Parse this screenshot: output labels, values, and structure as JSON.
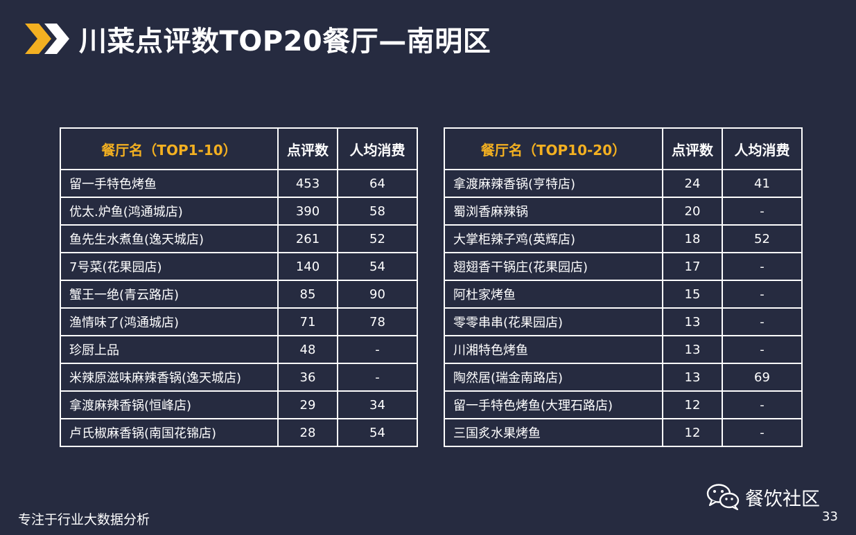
{
  "title": "川菜点评数TOP20餐厅—南明区",
  "accent_color": "#f3b021",
  "background_color": "#262b40",
  "chevron_icon": "double-chevron-right-icon",
  "table_left": {
    "headers": [
      "餐厅名（TOP1-10）",
      "点评数",
      "人均消费"
    ],
    "rows": [
      [
        "留一手特色烤鱼",
        "453",
        "64"
      ],
      [
        "优太.炉鱼(鸿通城店)",
        "390",
        "58"
      ],
      [
        "鱼先生水煮鱼(逸天城店)",
        "261",
        "52"
      ],
      [
        "7号菜(花果园店)",
        "140",
        "54"
      ],
      [
        "蟹王一绝(青云路店)",
        "85",
        "90"
      ],
      [
        "渔情味了(鸿通城店)",
        "71",
        "78"
      ],
      [
        "珍厨上品",
        "48",
        "-"
      ],
      [
        "米辣原滋味麻辣香锅(逸天城店)",
        "36",
        "-"
      ],
      [
        "拿渡麻辣香锅(恒峰店)",
        "29",
        "34"
      ],
      [
        "卢氏椒麻香锅(南国花锦店)",
        "28",
        "54"
      ]
    ]
  },
  "table_right": {
    "headers": [
      "餐厅名（TOP10-20）",
      "点评数",
      "人均消费"
    ],
    "rows": [
      [
        "拿渡麻辣香锅(亨特店)",
        "24",
        "41"
      ],
      [
        "蜀浏香麻辣锅",
        "20",
        "-"
      ],
      [
        "大掌柜辣子鸡(英辉店)",
        "18",
        "52"
      ],
      [
        "翅翅香干锅庄(花果园店)",
        "17",
        "-"
      ],
      [
        "阿杜家烤鱼",
        "15",
        "-"
      ],
      [
        "零零串串(花果园店)",
        "13",
        "-"
      ],
      [
        "川湘特色烤鱼",
        "13",
        "-"
      ],
      [
        "陶然居(瑞金南路店)",
        "13",
        "69"
      ],
      [
        "留一手特色烤鱼(大理石路店)",
        "12",
        "-"
      ],
      [
        "三国炙水果烤鱼",
        "12",
        "-"
      ]
    ]
  },
  "footer": {
    "slogan": "专注于行业大数据分析",
    "brand": "餐饮社区",
    "brand_icon": "wechat-icon",
    "page_number": "33"
  }
}
